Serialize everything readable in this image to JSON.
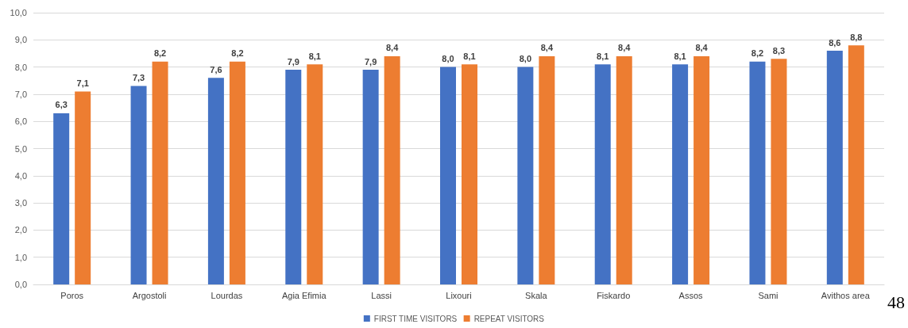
{
  "chart_data": {
    "type": "bar",
    "categories": [
      "Poros",
      "Argostoli",
      "Lourdas",
      "Agia Efimia",
      "Lassi",
      "Lixouri",
      "Skala",
      "Fiskardo",
      "Assos",
      "Sami",
      "Avithos area"
    ],
    "series": [
      {
        "name": "FIRST TIME VISITORS",
        "color": "#4472c4",
        "values": [
          6.3,
          7.3,
          7.6,
          7.9,
          7.9,
          8.0,
          8.0,
          8.1,
          8.1,
          8.2,
          8.6
        ],
        "value_labels": [
          "6,3",
          "7,3",
          "7,6",
          "7,9",
          "7,9",
          "8,0",
          "8,0",
          "8,1",
          "8,1",
          "8,2",
          "8,6"
        ]
      },
      {
        "name": "REPEAT VISITORS",
        "color": "#ed7d31",
        "values": [
          7.1,
          8.2,
          8.2,
          8.1,
          8.4,
          8.1,
          8.4,
          8.4,
          8.4,
          8.3,
          8.8
        ],
        "value_labels": [
          "7,1",
          "8,2",
          "8,2",
          "8,1",
          "8,4",
          "8,1",
          "8,4",
          "8,4",
          "8,4",
          "8,3",
          "8,8"
        ]
      }
    ],
    "ylim": [
      0,
      10
    ],
    "yticks": [
      {
        "value": 0,
        "label": "0,0"
      },
      {
        "value": 1,
        "label": "1,0"
      },
      {
        "value": 2,
        "label": "2,0"
      },
      {
        "value": 3,
        "label": "3,0"
      },
      {
        "value": 4,
        "label": "4,0"
      },
      {
        "value": 5,
        "label": "5,0"
      },
      {
        "value": 6,
        "label": "6,0"
      },
      {
        "value": 7,
        "label": "7,0"
      },
      {
        "value": 8,
        "label": "8,0"
      },
      {
        "value": 9,
        "label": "9,0"
      },
      {
        "value": 10,
        "label": "10,0"
      }
    ],
    "grid": "y",
    "legend": "bottom",
    "annotations": [
      "48"
    ]
  }
}
